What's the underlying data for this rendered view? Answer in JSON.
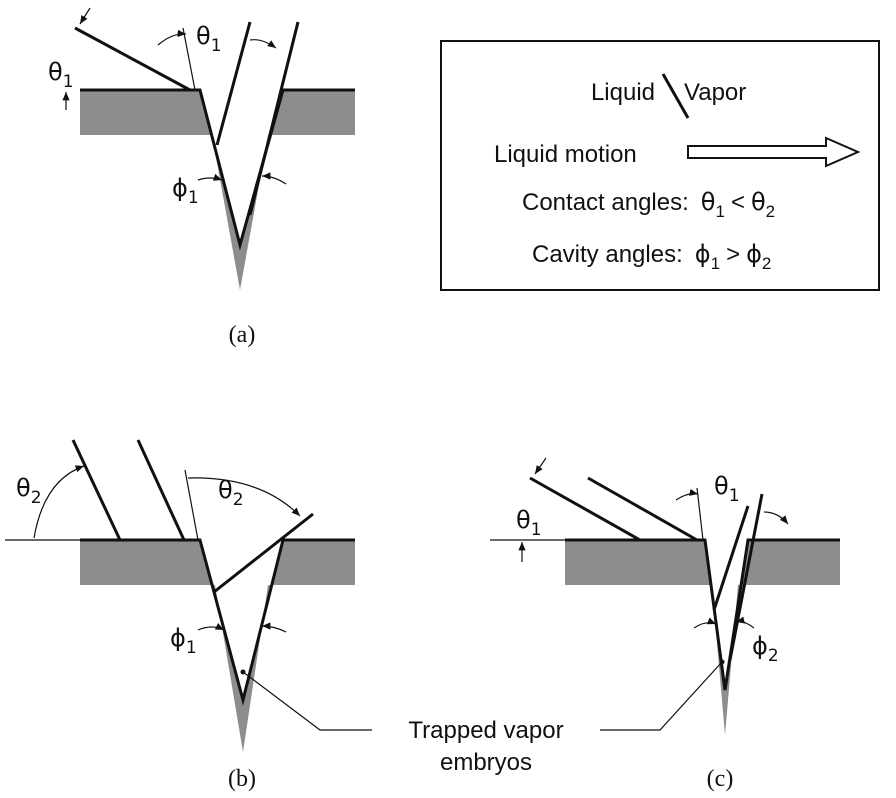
{
  "panels": [
    {
      "caption": "(a)",
      "labels": [
        {
          "symbol": "θ",
          "subscript": "1"
        },
        {
          "symbol": "θ",
          "subscript": "1"
        },
        {
          "symbol": "ϕ",
          "subscript": "1"
        }
      ]
    },
    {
      "caption": "(b)",
      "labels": [
        {
          "symbol": "θ",
          "subscript": "2"
        },
        {
          "symbol": "θ",
          "subscript": "2"
        },
        {
          "symbol": "ϕ",
          "subscript": "1"
        }
      ]
    },
    {
      "caption": "(c)",
      "labels": [
        {
          "symbol": "θ",
          "subscript": "1"
        },
        {
          "symbol": "θ",
          "subscript": "1"
        },
        {
          "symbol": "ϕ",
          "subscript": "2"
        }
      ]
    }
  ],
  "legend": {
    "liquid": "Liquid",
    "vapor": "Vapor",
    "motion": "Liquid motion",
    "contact": {
      "text": "Contact angles:",
      "lhs": {
        "symbol": "θ",
        "subscript": "1"
      },
      "op": "<",
      "rhs": {
        "symbol": "θ",
        "subscript": "2"
      }
    },
    "cavity": {
      "text": "Cavity angles:",
      "lhs": {
        "symbol": "ϕ",
        "subscript": "1"
      },
      "op": ">",
      "rhs": {
        "symbol": "ϕ",
        "subscript": "2"
      }
    }
  },
  "annotation": [
    "Trapped vapor",
    "embryos"
  ]
}
